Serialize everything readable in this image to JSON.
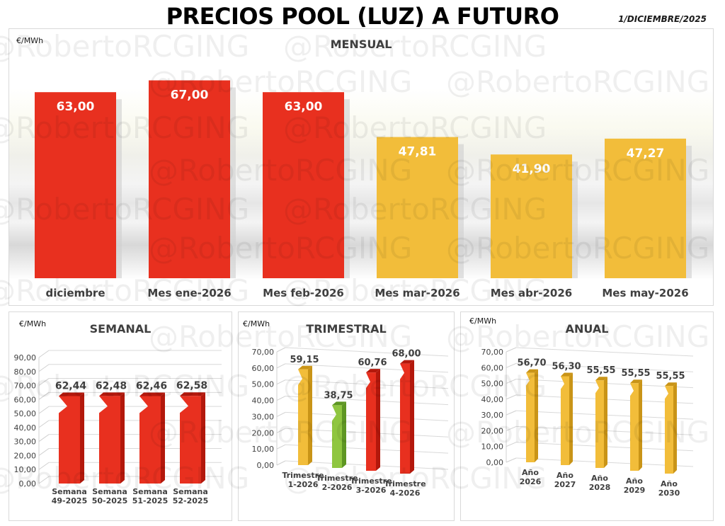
{
  "header": {
    "title": "PRECIOS POOL (LUZ) A FUTURO",
    "date": "1/DICIEMBRE/2025",
    "watermark": "@RobertoRCGING"
  },
  "colors": {
    "red": "#e8301f",
    "red_dark": "#b3180c",
    "yellow": "#f2bd3a",
    "yellow_dark": "#c99417",
    "green": "#8fc640",
    "green_dark": "#5e9623"
  },
  "chart_data": [
    {
      "id": "mensual",
      "type": "bar",
      "title": "MENSUAL",
      "ylabel": "€/MWh",
      "categories": [
        "diciembre",
        "Mes ene-2026",
        "Mes feb-2026",
        "Mes mar-2026",
        "Mes abr-2026",
        "Mes may-2026"
      ],
      "values": [
        63.0,
        67.0,
        63.0,
        47.81,
        41.9,
        47.27
      ],
      "labels": [
        "63,00",
        "67,00",
        "63,00",
        "47,81",
        "41,90",
        "47,27"
      ],
      "colors": [
        "red",
        "red",
        "red",
        "yellow",
        "yellow",
        "yellow"
      ],
      "ylim": [
        0,
        70
      ]
    },
    {
      "id": "semanal",
      "type": "bar",
      "title": "SEMANAL",
      "ylabel": "€/MWh",
      "categories": [
        "Semana|49-2025",
        "Semana|50-2025",
        "Semana|51-2025",
        "Semana|52-2025"
      ],
      "values": [
        62.44,
        62.48,
        62.46,
        62.58
      ],
      "labels": [
        "62,44",
        "62,48",
        "62,46",
        "62,58"
      ],
      "colors": [
        "red",
        "red",
        "red",
        "red"
      ],
      "ylim": [
        0,
        90
      ],
      "yticks": [
        "0,00",
        "10,00",
        "20,00",
        "30,00",
        "40,00",
        "50,00",
        "60,00",
        "70,00",
        "80,00",
        "90,00"
      ]
    },
    {
      "id": "trimestral",
      "type": "bar",
      "title": "TRIMESTRAL",
      "ylabel": "€/MWh",
      "categories": [
        "Trimestre|1-2026",
        "Trimestre|2-2026",
        "Trimestre|3-2026",
        "Trimestre|4-2026"
      ],
      "values": [
        59.15,
        38.75,
        60.76,
        68.0
      ],
      "labels": [
        "59,15",
        "38,75",
        "60,76",
        "68,00"
      ],
      "colors": [
        "yellow",
        "green",
        "red",
        "red"
      ],
      "ylim": [
        0,
        70
      ],
      "yticks": [
        "0,00",
        "10,00",
        "20,00",
        "30,00",
        "40,00",
        "50,00",
        "60,00",
        "70,00"
      ]
    },
    {
      "id": "anual",
      "type": "bar",
      "title": "ANUAL",
      "ylabel": "€/MWh",
      "categories": [
        "Año|2026",
        "Año|2027",
        "Año|2028",
        "Año|2029",
        "Año|2030"
      ],
      "values": [
        56.7,
        56.3,
        55.55,
        55.55,
        55.55
      ],
      "labels": [
        "56,70",
        "56,30",
        "55,55",
        "55,55",
        "55,55"
      ],
      "colors": [
        "yellow",
        "yellow",
        "yellow",
        "yellow",
        "yellow"
      ],
      "ylim": [
        0,
        70
      ],
      "yticks": [
        "0,00",
        "10,00",
        "20,00",
        "30,00",
        "40,00",
        "50,00",
        "60,00",
        "70,00"
      ]
    }
  ]
}
